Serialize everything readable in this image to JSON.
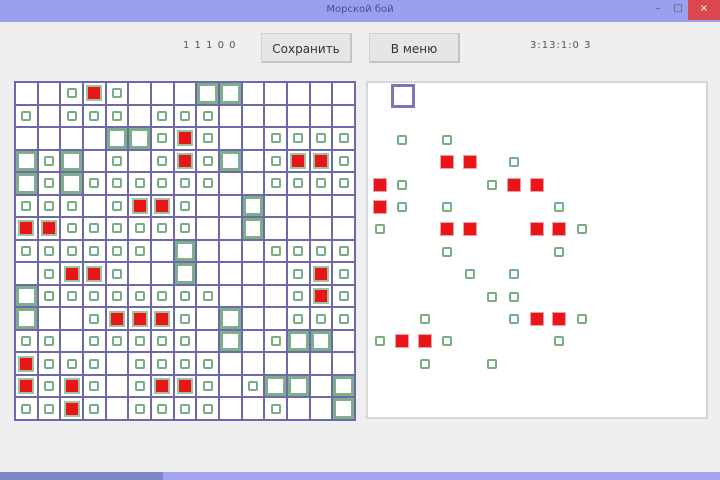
{
  "window": {
    "title": "Морской бой",
    "minimize": "–",
    "maximize": "□",
    "close": "×"
  },
  "toolbar": {
    "left_counter": "1 1 1 0 0",
    "save_label": "Сохранить",
    "menu_label": "В меню",
    "right_counter": "3:13:1:0  3"
  },
  "legend": {
    "empty": ".",
    "miss": "o",
    "hit": "X",
    "ship": "S"
  },
  "colors": {
    "grid": "#6d68aa",
    "hit": "#e8161b",
    "miss": "#78ae86",
    "ship": "#7fae8a",
    "titlebar": "#9b9ff0"
  },
  "player_board": [
    "..oXo...SS.....",
    "o.ooo.ooo......",
    "....SSoXo..oooo",
    "SoS.o.oXoS.oXXo",
    "SoSoooooo..oooo",
    "ooo.oXXo..S....",
    "XXoooooo..S....",
    "oooooo.S...oooo",
    ".oXXo..S....oXo",
    "Soooooooo...oXo",
    "S..oXXXo.S..ooo",
    "oo.ooooo.S.oSS.",
    "Xooo.oooo......",
    "XoXo.oXXo.oSS.S",
    "ooXo.oooo..o..S"
  ],
  "enemy_board": [
    "...............",
    "...............",
    ".o.o...........",
    "...XX.o........",
    "Xo...oXX.......",
    "Xo.o....o......",
    "o..XX..XXo.....",
    "...o....o......",
    "....o.o........",
    ".....oo........",
    "..o...oXXo.....",
    "oXXo....o......",
    "..o..o.........",
    "...............",
    "..............."
  ],
  "enemy_cursor": {
    "row": 0,
    "col": 1
  }
}
